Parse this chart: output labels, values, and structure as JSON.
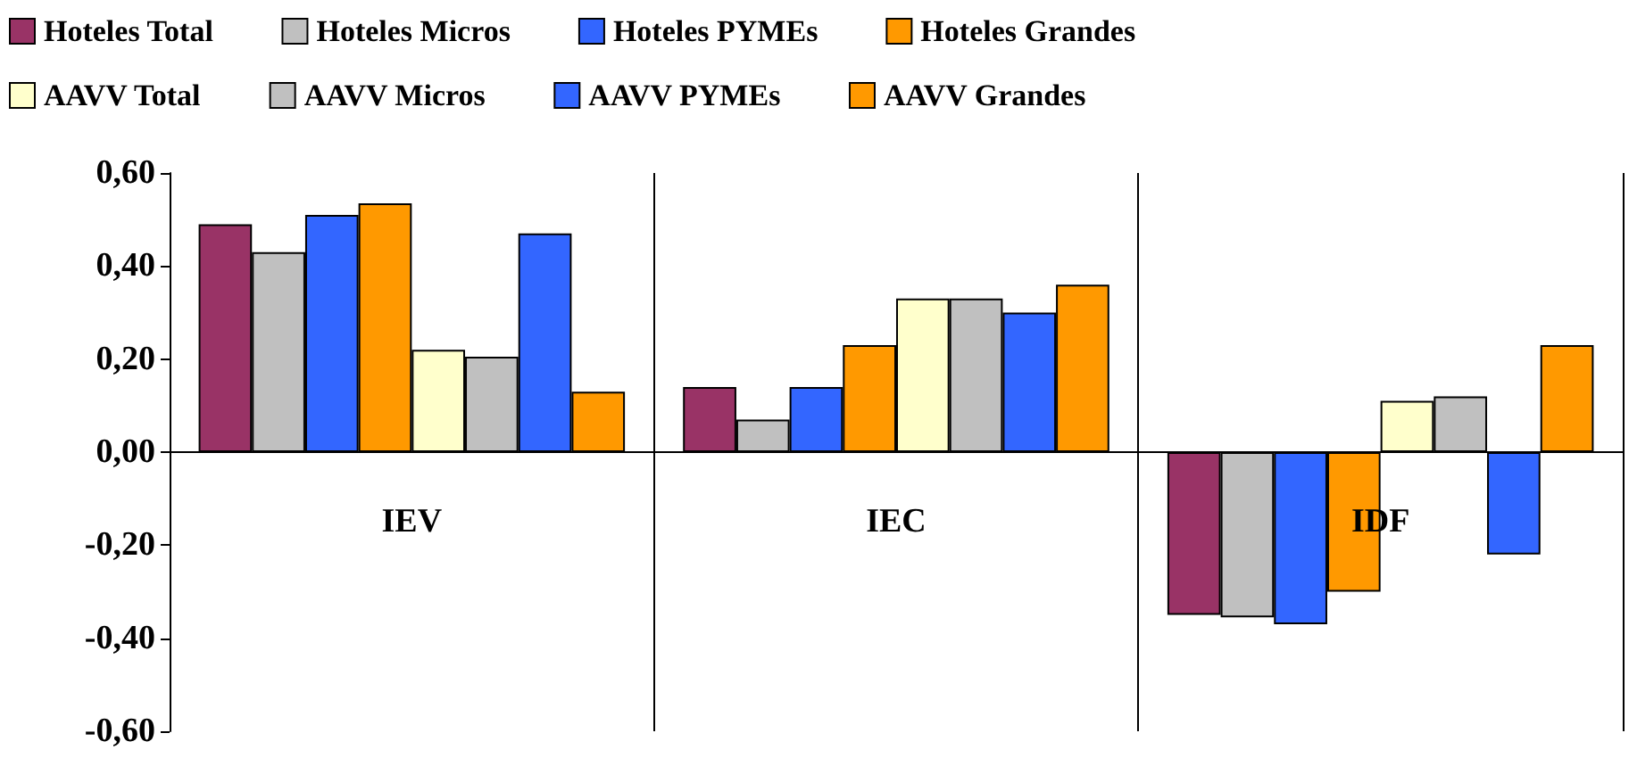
{
  "chart_data": {
    "type": "bar",
    "categories": [
      "IEV",
      "IEC",
      "IDF"
    ],
    "series": [
      {
        "name": "Hoteles Total",
        "color": "#993366",
        "values": [
          0.49,
          0.14,
          -0.35
        ]
      },
      {
        "name": "Hoteles Micros",
        "color": "#c0c0c0",
        "values": [
          0.43,
          0.07,
          -0.355
        ]
      },
      {
        "name": "Hoteles PYMEs",
        "color": "#3366ff",
        "values": [
          0.51,
          0.14,
          -0.37
        ]
      },
      {
        "name": "Hoteles Grandes",
        "color": "#ff9900",
        "values": [
          0.535,
          0.23,
          -0.3
        ]
      },
      {
        "name": "AAVV Total",
        "color": "#ffffcc",
        "values": [
          0.22,
          0.33,
          0.11
        ]
      },
      {
        "name": "AAVV Micros",
        "color": "#c0c0c0",
        "values": [
          0.205,
          0.33,
          0.12
        ]
      },
      {
        "name": "AAVV PYMEs",
        "color": "#3366ff",
        "values": [
          0.47,
          0.3,
          -0.22
        ]
      },
      {
        "name": "AAVV Grandes",
        "color": "#ff9900",
        "values": [
          0.13,
          0.36,
          0.23
        ]
      }
    ],
    "ylim": [
      -0.6,
      0.6
    ],
    "yticks": [
      {
        "value": -0.6,
        "label": "-0,60"
      },
      {
        "value": -0.4,
        "label": "-0,40"
      },
      {
        "value": -0.2,
        "label": "-0,20"
      },
      {
        "value": 0,
        "label": "0,00"
      },
      {
        "value": 0.2,
        "label": "0,20"
      },
      {
        "value": 0.4,
        "label": "0,40"
      },
      {
        "value": 0.6,
        "label": "0,60"
      }
    ],
    "grid": "x",
    "legend": "top"
  }
}
